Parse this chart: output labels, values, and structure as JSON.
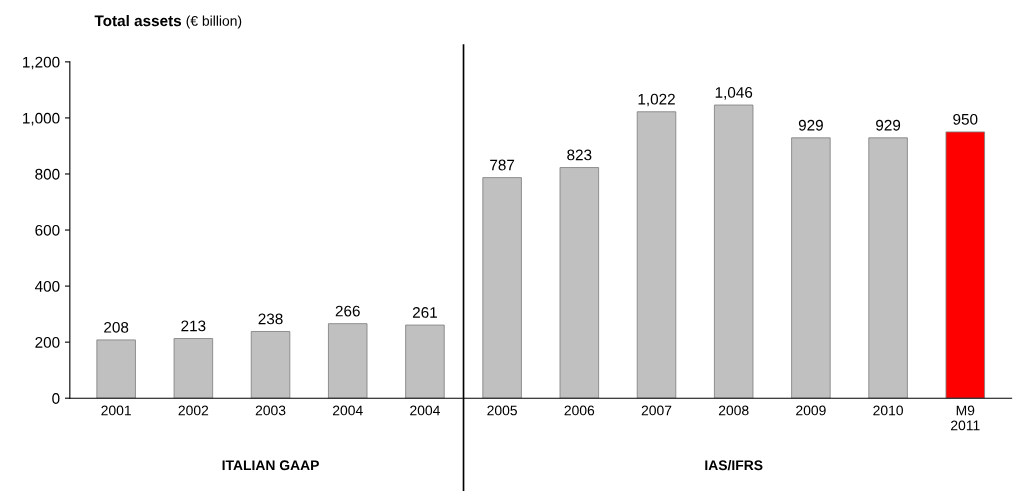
{
  "chart_data": {
    "type": "bar",
    "title": "Total assets",
    "subtitle": "(€ billion)",
    "categories": [
      "2001",
      "2002",
      "2003",
      "2004",
      "2004",
      "2005",
      "2006",
      "2007",
      "2008",
      "2009",
      "2010",
      "M9\n2011"
    ],
    "values": [
      208,
      213,
      238,
      266,
      261,
      787,
      823,
      1022,
      1046,
      929,
      929,
      950
    ],
    "value_labels": [
      "208",
      "213",
      "238",
      "266",
      "261",
      "787",
      "823",
      "1,022",
      "1,046",
      "929",
      "929",
      "950"
    ],
    "colors": [
      "#c0c0c0",
      "#c0c0c0",
      "#c0c0c0",
      "#c0c0c0",
      "#c0c0c0",
      "#c0c0c0",
      "#c0c0c0",
      "#c0c0c0",
      "#c0c0c0",
      "#c0c0c0",
      "#c0c0c0",
      "#ff0000"
    ],
    "ylim": [
      0,
      1200
    ],
    "yticks": [
      0,
      200,
      400,
      600,
      800,
      {
        "value": 1000,
        "label": "1,000"
      },
      {
        "value": 1200,
        "label": "1,200"
      }
    ],
    "annotations": [
      "ITALIAN GAAP",
      "IAS/IFRS"
    ],
    "grid": false,
    "legend": false
  }
}
